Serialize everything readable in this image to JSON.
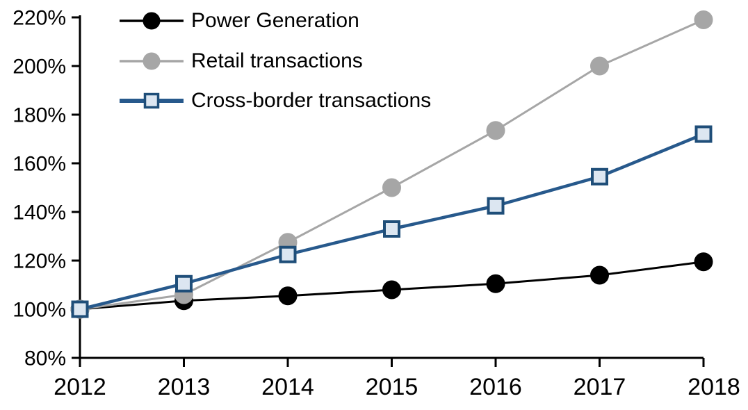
{
  "chart_data": {
    "type": "line",
    "title": "",
    "xlabel": "",
    "ylabel": "",
    "grid": false,
    "legend_position": "top-left",
    "background_color": "#ffffff",
    "axis_color": "#000000",
    "x": [
      2012,
      2013,
      2014,
      2015,
      2016,
      2017,
      2018
    ],
    "x_tick_labels": [
      "2012",
      "2013",
      "2014",
      "2015",
      "2016",
      "2017",
      "2018"
    ],
    "y_axis": {
      "min": 80,
      "max": 220,
      "step": 20,
      "unit": "%",
      "tick_labels": [
        "80%",
        "100%",
        "120%",
        "140%",
        "160%",
        "180%",
        "200%",
        "220%"
      ]
    },
    "series": [
      {
        "name": "Power Generation",
        "values": [
          100,
          103.5,
          105.5,
          108,
          110.5,
          114,
          119.5
        ],
        "line_color": "#000000",
        "line_width": 3,
        "marker": "circle",
        "marker_fill": "#000000",
        "marker_stroke": "#000000"
      },
      {
        "name": "Retail transactions",
        "values": [
          100,
          106,
          127.5,
          150,
          173.5,
          200,
          219
        ],
        "line_color": "#a6a6a6",
        "line_width": 3,
        "marker": "circle",
        "marker_fill": "#a6a6a6",
        "marker_stroke": "#a6a6a6"
      },
      {
        "name": "Cross-border transactions",
        "values": [
          100,
          110.5,
          122.5,
          133,
          142.5,
          154.5,
          172
        ],
        "line_color": "#27598c",
        "line_width": 4.5,
        "marker": "square",
        "marker_fill": "#dce6f1",
        "marker_stroke": "#1f4e79"
      }
    ]
  }
}
